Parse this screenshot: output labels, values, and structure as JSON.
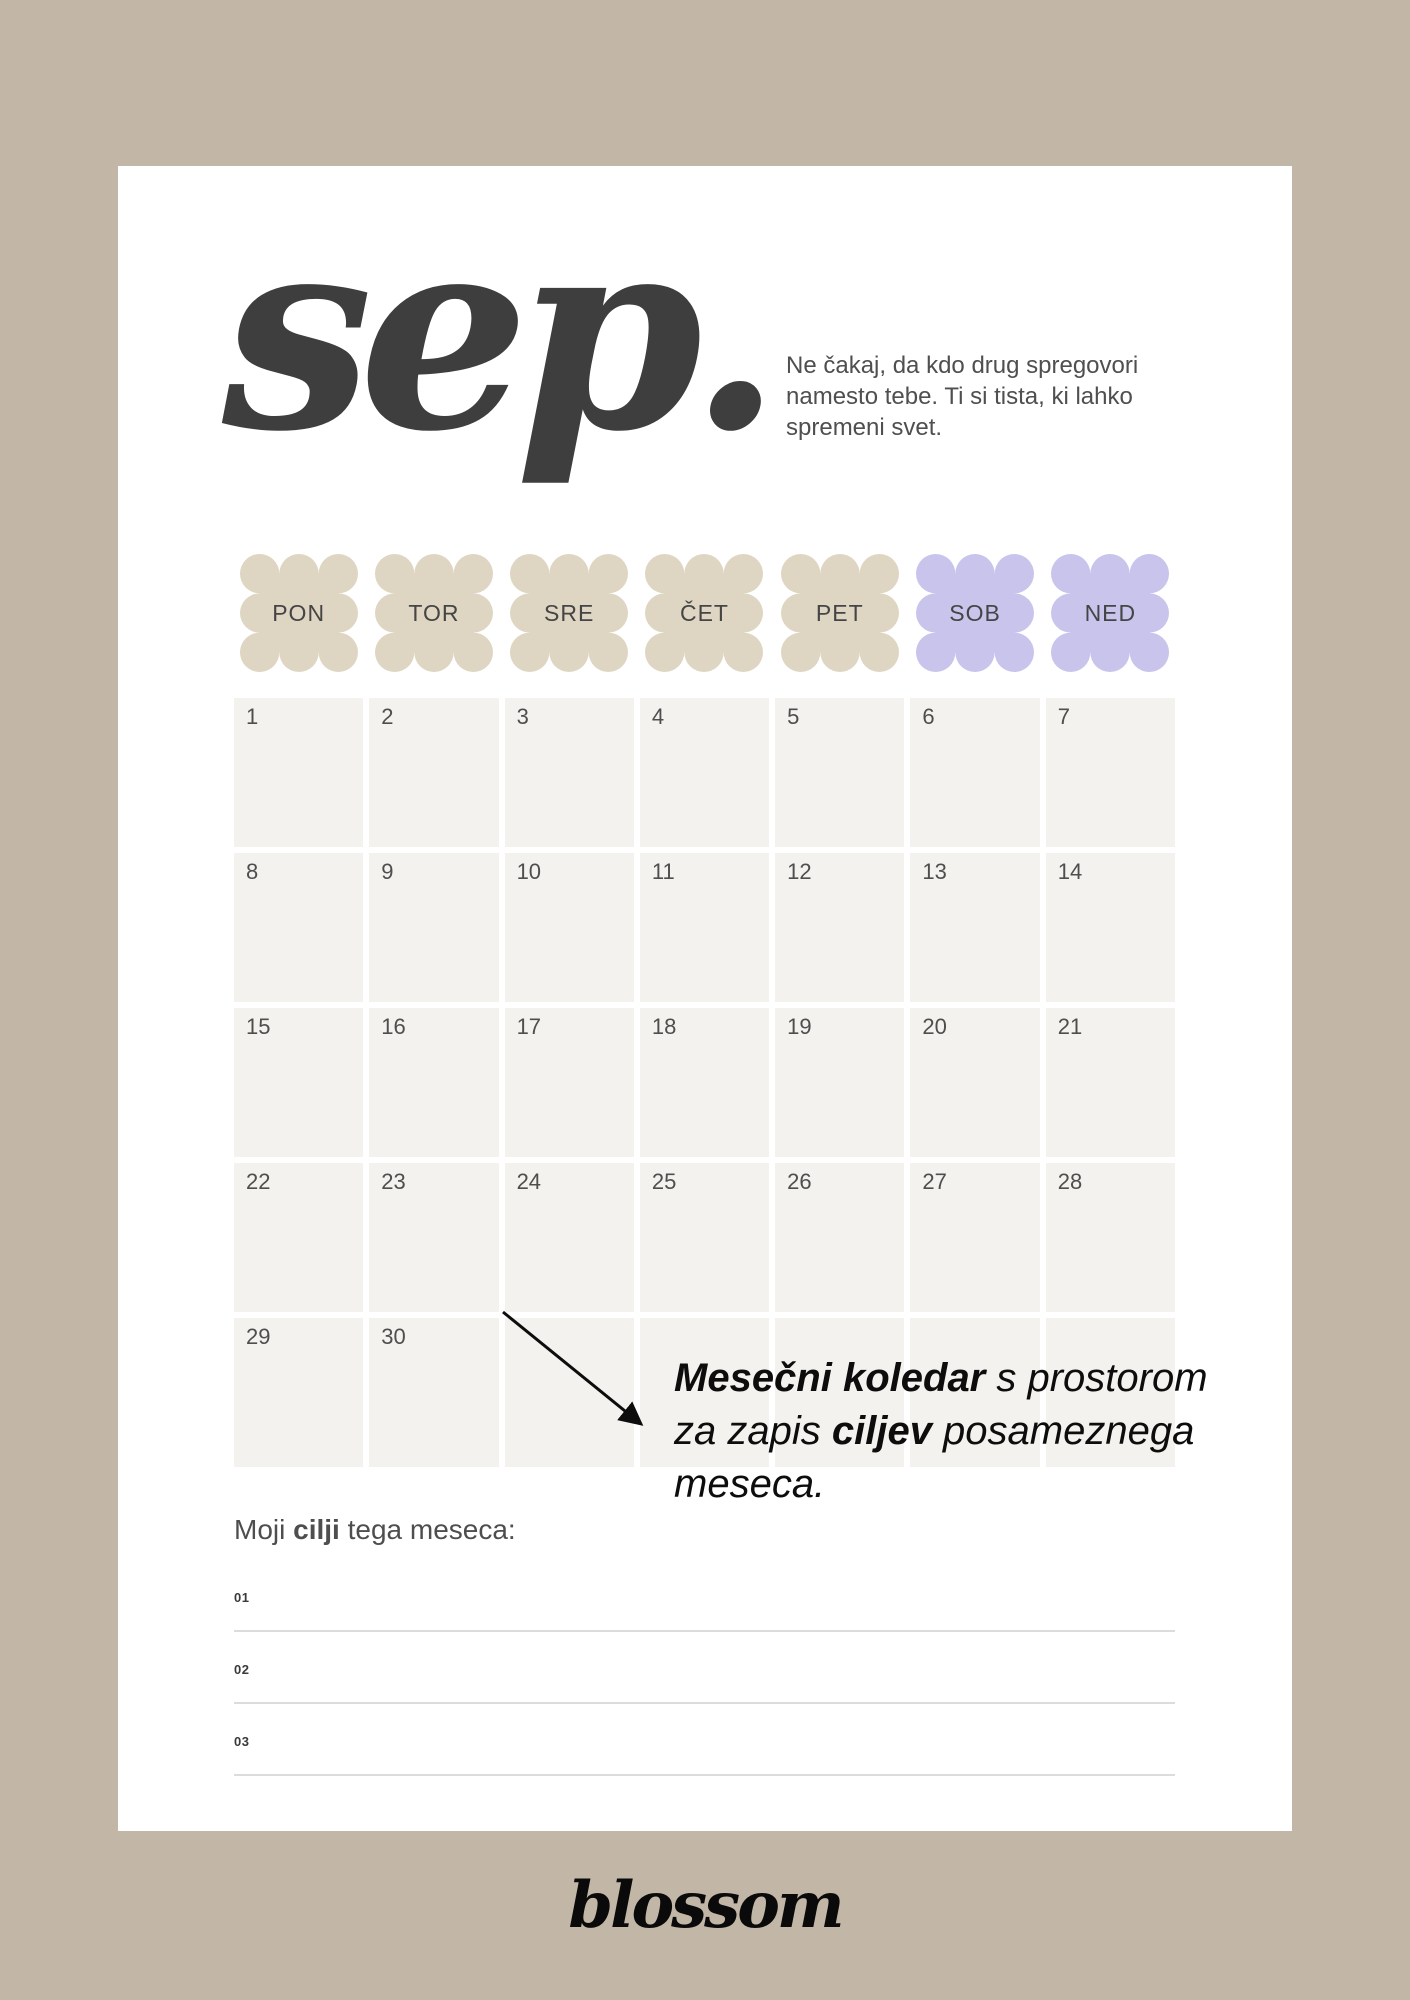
{
  "calendar": {
    "month_title": "sep.",
    "quote_lines": [
      "Ne čakaj, da kdo drug spregovori",
      "namesto tebe. Ti si tista, ki lahko",
      "spremeni svet."
    ],
    "day_headers": [
      {
        "label": "PON",
        "weekend": false
      },
      {
        "label": "TOR",
        "weekend": false
      },
      {
        "label": "SRE",
        "weekend": false
      },
      {
        "label": "ČET",
        "weekend": false
      },
      {
        "label": "PET",
        "weekend": false
      },
      {
        "label": "SOB",
        "weekend": true
      },
      {
        "label": "NED",
        "weekend": true
      }
    ],
    "days": [
      "1",
      "2",
      "3",
      "4",
      "5",
      "6",
      "7",
      "8",
      "9",
      "10",
      "11",
      "12",
      "13",
      "14",
      "15",
      "16",
      "17",
      "18",
      "19",
      "20",
      "21",
      "22",
      "23",
      "24",
      "25",
      "26",
      "27",
      "28",
      "29",
      "30",
      "",
      "",
      "",
      "",
      ""
    ]
  },
  "annotation": {
    "line1_bold": "Mesečni koledar",
    "line1_rest": " s prostorom",
    "line2_pre": "za zapis ",
    "line2_bold": "ciljev",
    "line2_post": " posameznega",
    "line3": "meseca."
  },
  "goals": {
    "heading_pre": "Moji ",
    "heading_bold": "cilji",
    "heading_post": " tega meseca:",
    "items": [
      "01",
      "02",
      "03"
    ]
  },
  "footer": {
    "logo": "blossom"
  },
  "colors": {
    "background_tan": "#c2b7a7",
    "card_white": "#ffffff",
    "cell_offwhite": "#f4f2ee",
    "weekday_beige": "#ded6c3",
    "weekend_lavender": "#c8c4ec",
    "title_gray": "#3e3e3e",
    "annotation_black": "#0d0d0d"
  }
}
